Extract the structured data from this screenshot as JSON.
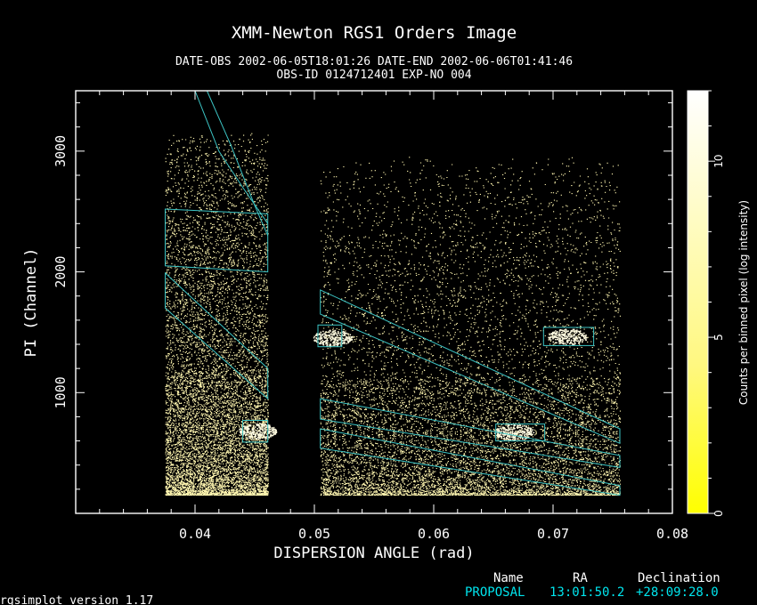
{
  "page": {
    "title": "XMM-Newton  RGS1 Orders Image",
    "obs_line1": "DATE-OBS 2002-06-05T18:01:26   DATE-END 2002-06-06T01:41:46",
    "obs_line2": "OBS-ID 0124712401 EXP-NO 004",
    "footer_version": "rgsimplot version 1.17",
    "info_header": {
      "name": "Name",
      "ra": "RA",
      "dec": "Declination"
    },
    "info_row": {
      "name": "PROPOSAL",
      "ra": "13:01:50.2",
      "dec": "+28:09:28.0"
    }
  },
  "colors": {
    "background": "#000000",
    "axes": "#ffffff",
    "events": "#fff6b0",
    "region_outline": "#3cc4c4",
    "info_row": "#00e5ee",
    "colorbar_low": "#ffff00",
    "colorbar_high": "#ffffff"
  },
  "chart_data": {
    "type": "heatmap",
    "title": "XMM-Newton  RGS1 Orders Image",
    "xlabel": "DISPERSION ANGLE (rad)",
    "ylabel": "PI (Channel)",
    "xlim": [
      0.03,
      0.08
    ],
    "ylim": [
      0,
      3500
    ],
    "xticks": [
      0.04,
      0.05,
      0.06,
      0.07,
      0.08
    ],
    "xtick_labels": [
      "0.04",
      "0.05",
      "0.06",
      "0.07",
      "0.08"
    ],
    "yticks": [
      1000,
      2000,
      3000
    ],
    "ytick_labels": [
      "1000",
      "2000",
      "3000"
    ],
    "colorbar": {
      "label": "Counts per binned pixel (log intensity)",
      "range": [
        0,
        12
      ],
      "ticks": [
        0,
        5,
        10
      ],
      "tick_labels": [
        "0",
        "5",
        "10"
      ]
    },
    "event_columns": [
      {
        "x_range": [
          0.0375,
          0.0461
        ],
        "y_range": [
          150,
          3150
        ]
      },
      {
        "x_range": [
          0.0505,
          0.0756
        ],
        "y_range": [
          150,
          2950
        ]
      }
    ],
    "bright_spots": [
      {
        "x": 0.0515,
        "y": 1450
      },
      {
        "x": 0.0667,
        "y": 670
      },
      {
        "x": 0.0712,
        "y": 1460
      },
      {
        "x": 0.0452,
        "y": 680
      }
    ],
    "order_regions": [
      {
        "order": 1,
        "points": [
          [
            0.0375,
            2520
          ],
          [
            0.0461,
            2480
          ],
          [
            0.0461,
            2000
          ],
          [
            0.0375,
            2050
          ]
        ]
      },
      {
        "order": 1,
        "points": [
          [
            0.0505,
            1850
          ],
          [
            0.0756,
            700
          ],
          [
            0.0756,
            580
          ],
          [
            0.0505,
            1650
          ]
        ]
      },
      {
        "order": 2,
        "points": [
          [
            0.0375,
            1990
          ],
          [
            0.0461,
            1200
          ],
          [
            0.0461,
            950
          ],
          [
            0.0375,
            1700
          ]
        ]
      },
      {
        "order": 2,
        "points": [
          [
            0.0505,
            950
          ],
          [
            0.0756,
            480
          ],
          [
            0.0756,
            380
          ],
          [
            0.0505,
            780
          ]
        ]
      },
      {
        "order": 3,
        "points": [
          [
            0.0505,
            700
          ],
          [
            0.0756,
            230
          ],
          [
            0.0756,
            150
          ],
          [
            0.0505,
            540
          ]
        ]
      }
    ],
    "order_curves": [
      {
        "points": [
          [
            0.04,
            3500
          ],
          [
            0.042,
            3000
          ],
          [
            0.044,
            2700
          ],
          [
            0.0461,
            2400
          ]
        ]
      },
      {
        "points": [
          [
            0.041,
            3500
          ],
          [
            0.043,
            3050
          ],
          [
            0.045,
            2550
          ],
          [
            0.0461,
            2300
          ]
        ]
      }
    ],
    "source_boxes": [
      {
        "x": [
          0.0503,
          0.0523
        ],
        "y": [
          1380,
          1560
        ]
      },
      {
        "x": [
          0.0652,
          0.0693
        ],
        "y": [
          600,
          740
        ]
      },
      {
        "x": [
          0.0692,
          0.0734
        ],
        "y": [
          1390,
          1540
        ]
      },
      {
        "x": [
          0.044,
          0.0461
        ],
        "y": [
          590,
          770
        ]
      }
    ],
    "grid": false
  }
}
